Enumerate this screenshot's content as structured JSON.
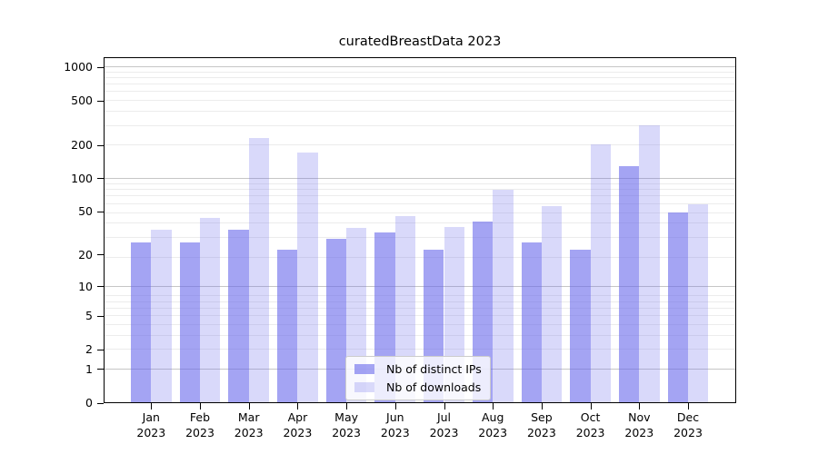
{
  "chart_data": {
    "type": "bar",
    "title": "curatedBreastData 2023",
    "y_scale": "log(1+x)",
    "ylim": [
      0,
      1229
    ],
    "y_ticks": [
      1000,
      500,
      200,
      100,
      50,
      20,
      10,
      5,
      2,
      1,
      0
    ],
    "grid": "on",
    "legend_position": "lower center",
    "categories": [
      "Jan 2023",
      "Feb 2023",
      "Mar 2023",
      "Apr 2023",
      "May 2023",
      "Jun 2023",
      "Jul 2023",
      "Aug 2023",
      "Sep 2023",
      "Oct 2023",
      "Nov 2023",
      "Dec 2023"
    ],
    "category_months": [
      "Jan",
      "Feb",
      "Mar",
      "Apr",
      "May",
      "Jun",
      "Jul",
      "Aug",
      "Sep",
      "Oct",
      "Nov",
      "Dec"
    ],
    "category_year": "2023",
    "series": [
      {
        "name": "Nb of distinct IPs",
        "color": "rgba(103,103,235,0.6)",
        "values": [
          26,
          26,
          34,
          22,
          28,
          32,
          22,
          40,
          26,
          22,
          128,
          49
        ]
      },
      {
        "name": "Nb of downloads",
        "color": "rgba(103,103,235,0.25)",
        "values": [
          34,
          43,
          230,
          170,
          35,
          45,
          36,
          78,
          55,
          199,
          295,
          58
        ]
      }
    ]
  },
  "colors": {
    "major_grid": "#c6c6c6",
    "minor_grid": "#ececec",
    "axis": "#000000",
    "bar_base": "#6767eb"
  }
}
